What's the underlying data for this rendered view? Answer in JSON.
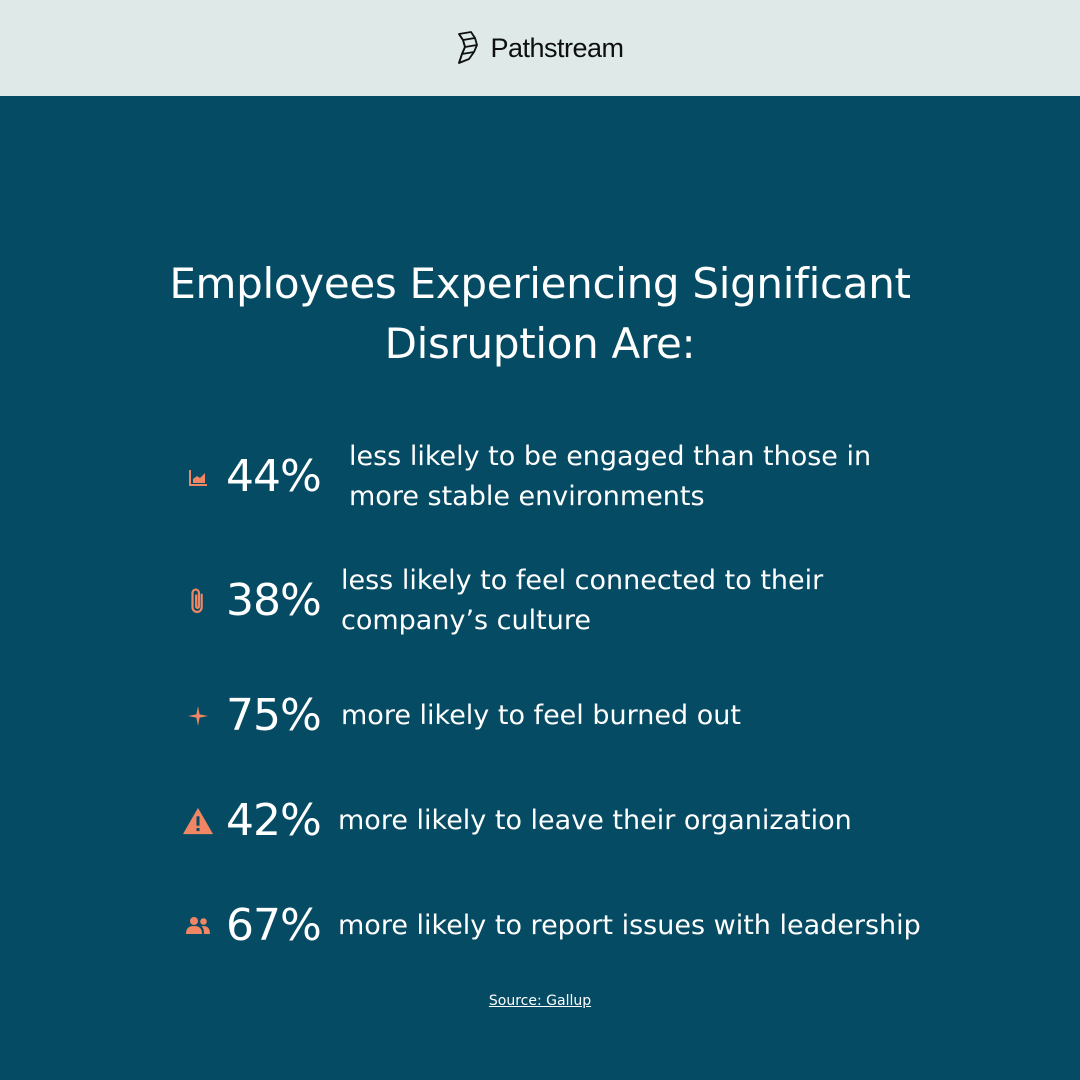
{
  "colors": {
    "background": "#054b63",
    "header_background": "#dfe9e8",
    "accent": "#f08664",
    "text": "#ffffff",
    "brand_text": "#0e0f12"
  },
  "brand": {
    "logo_icon": "pathstream-logo-icon",
    "name": "Pathstream"
  },
  "title": {
    "line1": "Employees Experiencing Significant",
    "line2": "Disruption Are:"
  },
  "stats": [
    {
      "icon": "chart-icon",
      "value": "44%",
      "desc_line1": "less likely to be engaged than those in",
      "desc_line2": "more stable environments"
    },
    {
      "icon": "paperclip-icon",
      "value": "38%",
      "desc_line1": "less likely to feel connected to their",
      "desc_line2": "company’s culture"
    },
    {
      "icon": "sparkle-icon",
      "value": "75%",
      "desc_line1": "more likely to feel burned out"
    },
    {
      "icon": "warning-icon",
      "value": "42%",
      "desc_line1": "more likely to leave their organization"
    },
    {
      "icon": "people-icon",
      "value": "67%",
      "desc_line1": "more likely to report issues with leadership"
    }
  ],
  "source": "Source: Gallup"
}
